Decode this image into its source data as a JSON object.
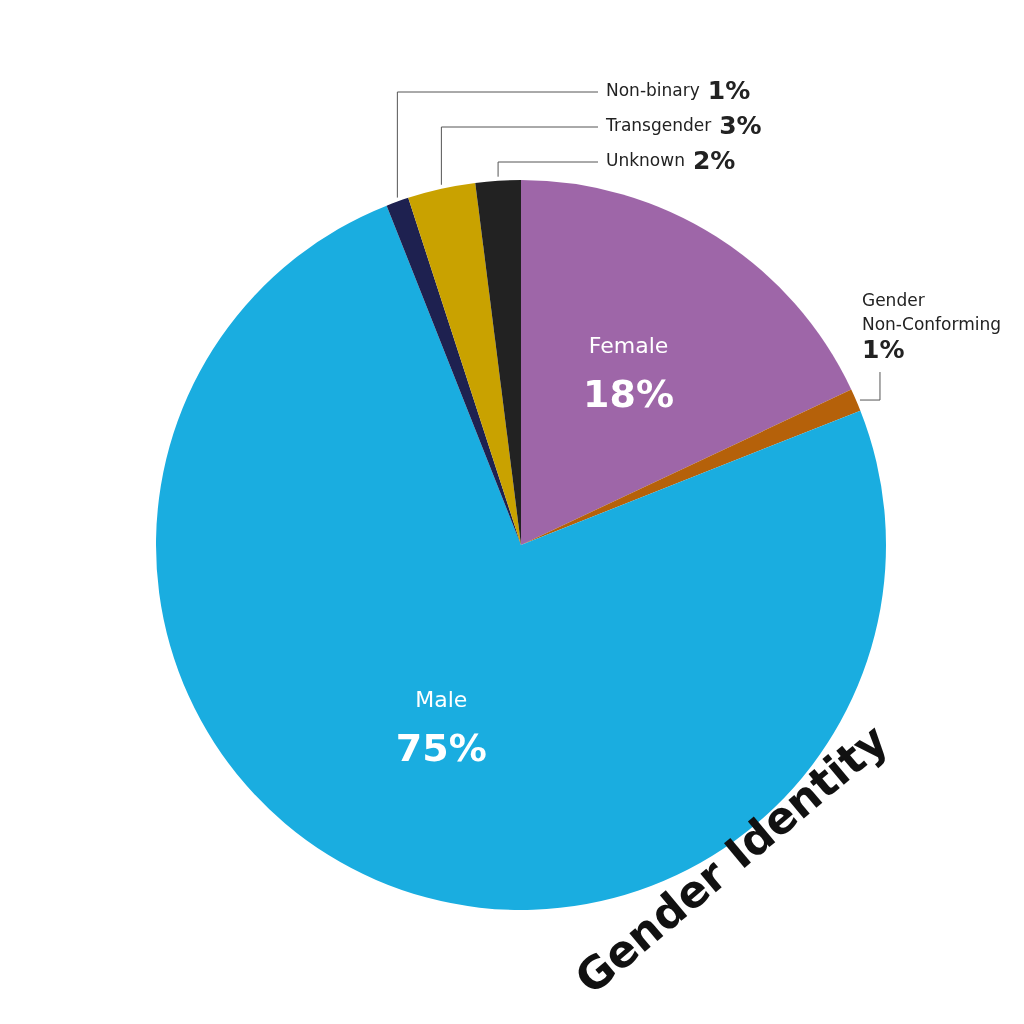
{
  "chart_data": {
    "type": "pie",
    "title": "Gender Identity",
    "categories": [
      "Female",
      "Gender Non-Conforming",
      "Male",
      "Non-binary",
      "Transgender",
      "Unknown"
    ],
    "values": [
      18,
      1,
      75,
      1,
      3,
      2
    ],
    "value_labels": [
      "18%",
      "1%",
      "75%",
      "1%",
      "3%",
      "2%"
    ],
    "colors": [
      "#9e66a8",
      "#b5610a",
      "#1aade0",
      "#1e2150",
      "#c9a200",
      "#222222"
    ],
    "legend": false
  }
}
